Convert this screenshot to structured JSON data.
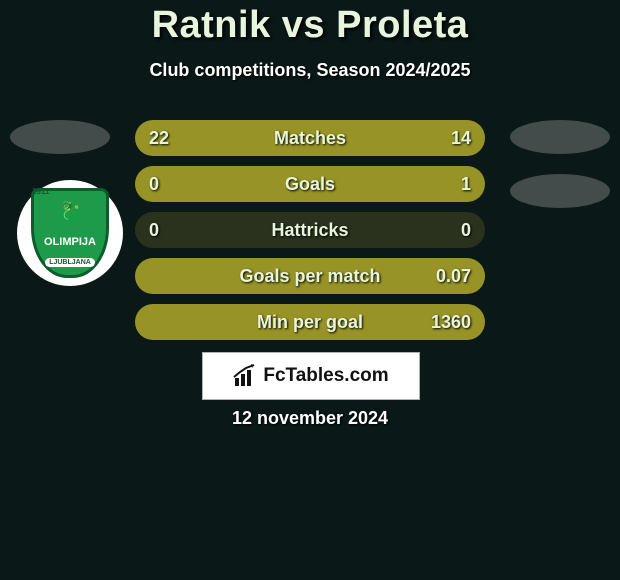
{
  "header": {
    "title": "Ratnik vs Proleta",
    "subtitle": "Club competitions, Season 2024/2025"
  },
  "club_logo": {
    "top_year": "1911",
    "mid_text": "OLIMPIJA",
    "bottom_text": "LJUBLJANA",
    "shield_fill": "#1e9b4a",
    "shield_border": "#0c5c2c"
  },
  "colors": {
    "bar_bg": "#2a321e",
    "bar_fill": "#989326",
    "page_bg": "#0a1818",
    "text": "#e6f5dc",
    "decor": "#434b4b"
  },
  "bars": [
    {
      "label": "Matches",
      "left_value": "22",
      "right_value": "14",
      "left_pct": 61,
      "right_pct": 39,
      "full_fill": true
    },
    {
      "label": "Goals",
      "left_value": "0",
      "right_value": "1",
      "left_pct": 0,
      "right_pct": 100,
      "full_fill": true
    },
    {
      "label": "Hattricks",
      "left_value": "0",
      "right_value": "0",
      "left_pct": 0,
      "right_pct": 0,
      "full_fill": false
    },
    {
      "label": "Goals per match",
      "left_value": "",
      "right_value": "0.07",
      "left_pct": 0,
      "right_pct": 100,
      "full_fill": true
    },
    {
      "label": "Min per goal",
      "left_value": "",
      "right_value": "1360",
      "left_pct": 0,
      "right_pct": 100,
      "full_fill": true
    }
  ],
  "brand": {
    "text": "FcTables.com"
  },
  "footer_date": "12 november 2024"
}
